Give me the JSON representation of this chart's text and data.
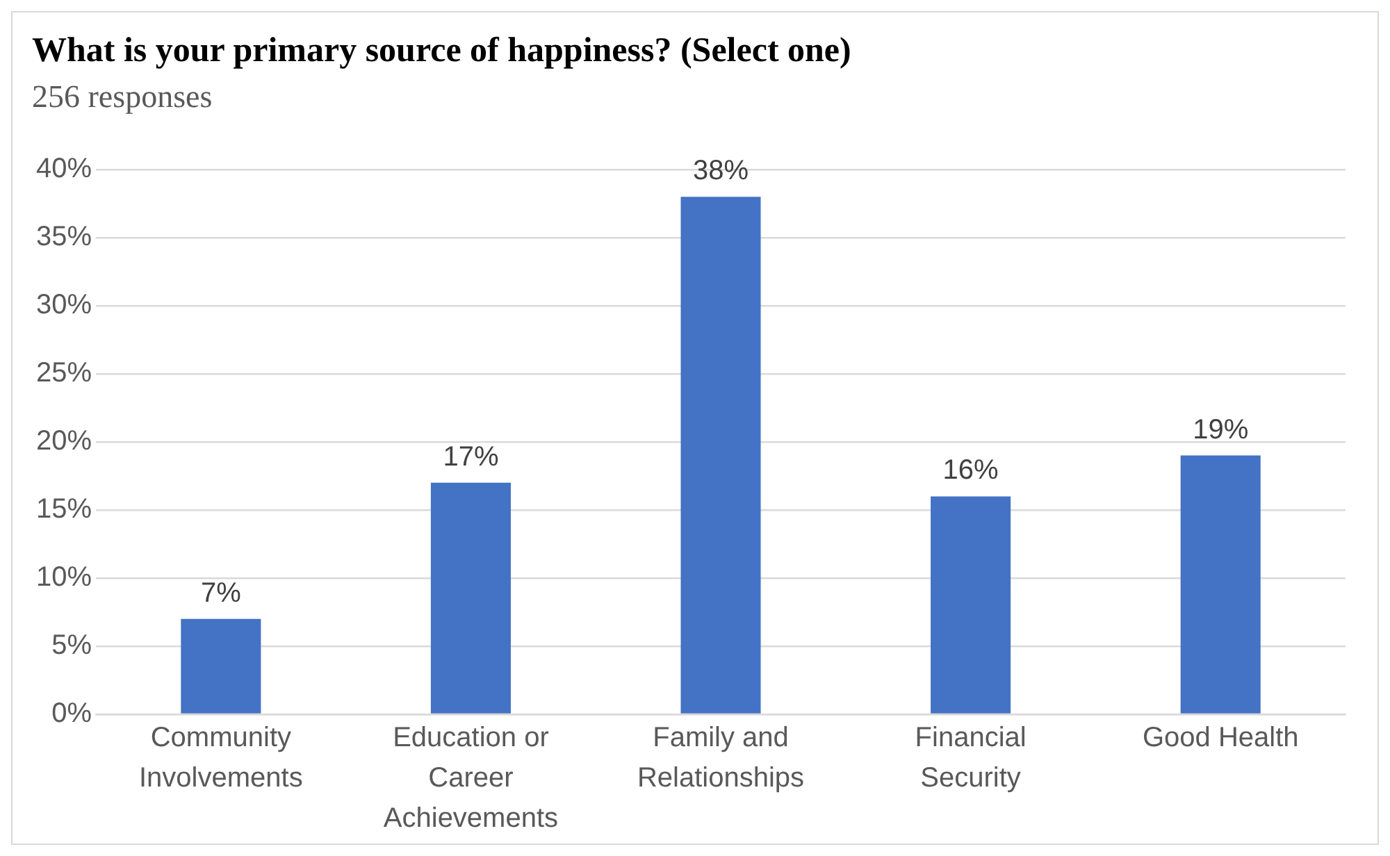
{
  "chart_data": {
    "type": "bar",
    "title": "What is your primary source of happiness? (Select one)",
    "subtitle": "256 responses",
    "categories": [
      "Community Involvements",
      "Education or Career Achievements",
      "Family and Relationships",
      "Financial Security",
      "Good Health"
    ],
    "values": [
      7,
      17,
      38,
      16,
      19
    ],
    "color": "#4472c4",
    "value_labels": [
      "7%",
      "17%",
      "38%",
      "16%",
      "19%"
    ],
    "ylim": [
      0,
      40
    ],
    "yticks": [
      {
        "value": 0,
        "label": "0%"
      },
      {
        "value": 5,
        "label": "5%"
      },
      {
        "value": 10,
        "label": "10%"
      },
      {
        "value": 15,
        "label": "15%"
      },
      {
        "value": 20,
        "label": "20%"
      },
      {
        "value": 25,
        "label": "25%"
      },
      {
        "value": 30,
        "label": "30%"
      },
      {
        "value": 35,
        "label": "35%"
      },
      {
        "value": 40,
        "label": "40%"
      }
    ],
    "grid": "y",
    "legend": false
  }
}
